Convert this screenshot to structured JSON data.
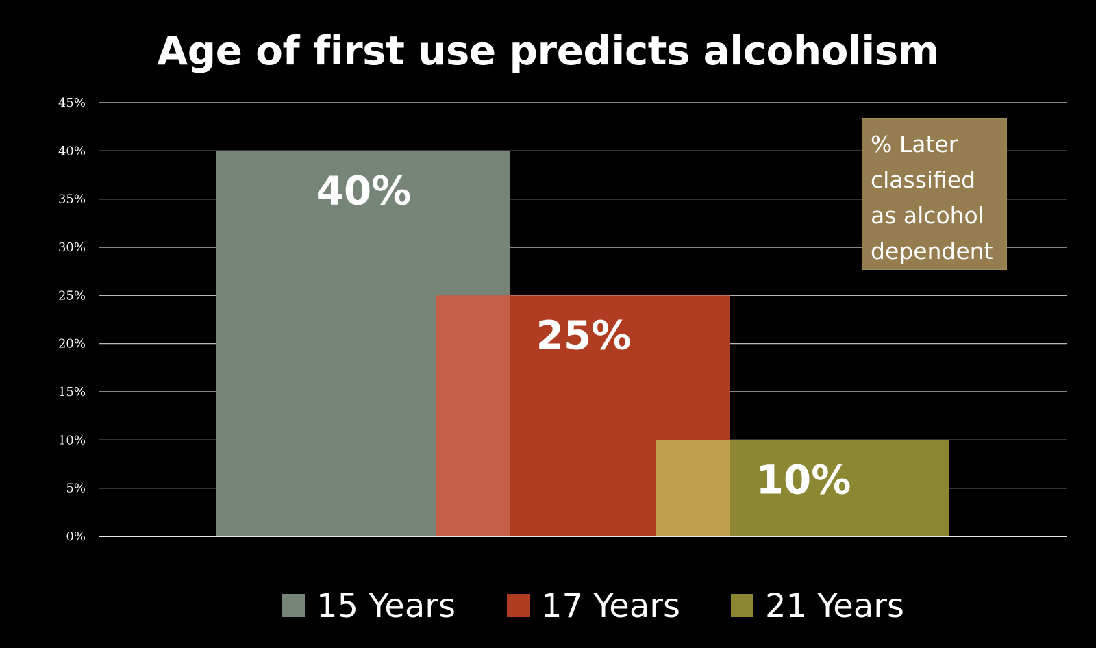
{
  "chart_data": {
    "type": "bar",
    "title": "Age of first use predicts alcoholism",
    "annotation": "% Later classified as alcohol dependent",
    "ylim": [
      0,
      45
    ],
    "y_ticks": [
      "0%",
      "5%",
      "10%",
      "15%",
      "20%",
      "25%",
      "30%",
      "35%",
      "40%",
      "45%"
    ],
    "grid": true,
    "legend_position": "bottom",
    "series": [
      {
        "name": "15 Years",
        "value": 40,
        "label": "40%",
        "color": "#778578"
      },
      {
        "name": "17 Years",
        "value": 25,
        "label": "25%",
        "color": "#b03d22"
      },
      {
        "name": "21 Years",
        "value": 10,
        "label": "10%",
        "color": "#8b8732"
      }
    ],
    "overlap_colors": [
      "#c55e48",
      "#c0a04c"
    ]
  }
}
